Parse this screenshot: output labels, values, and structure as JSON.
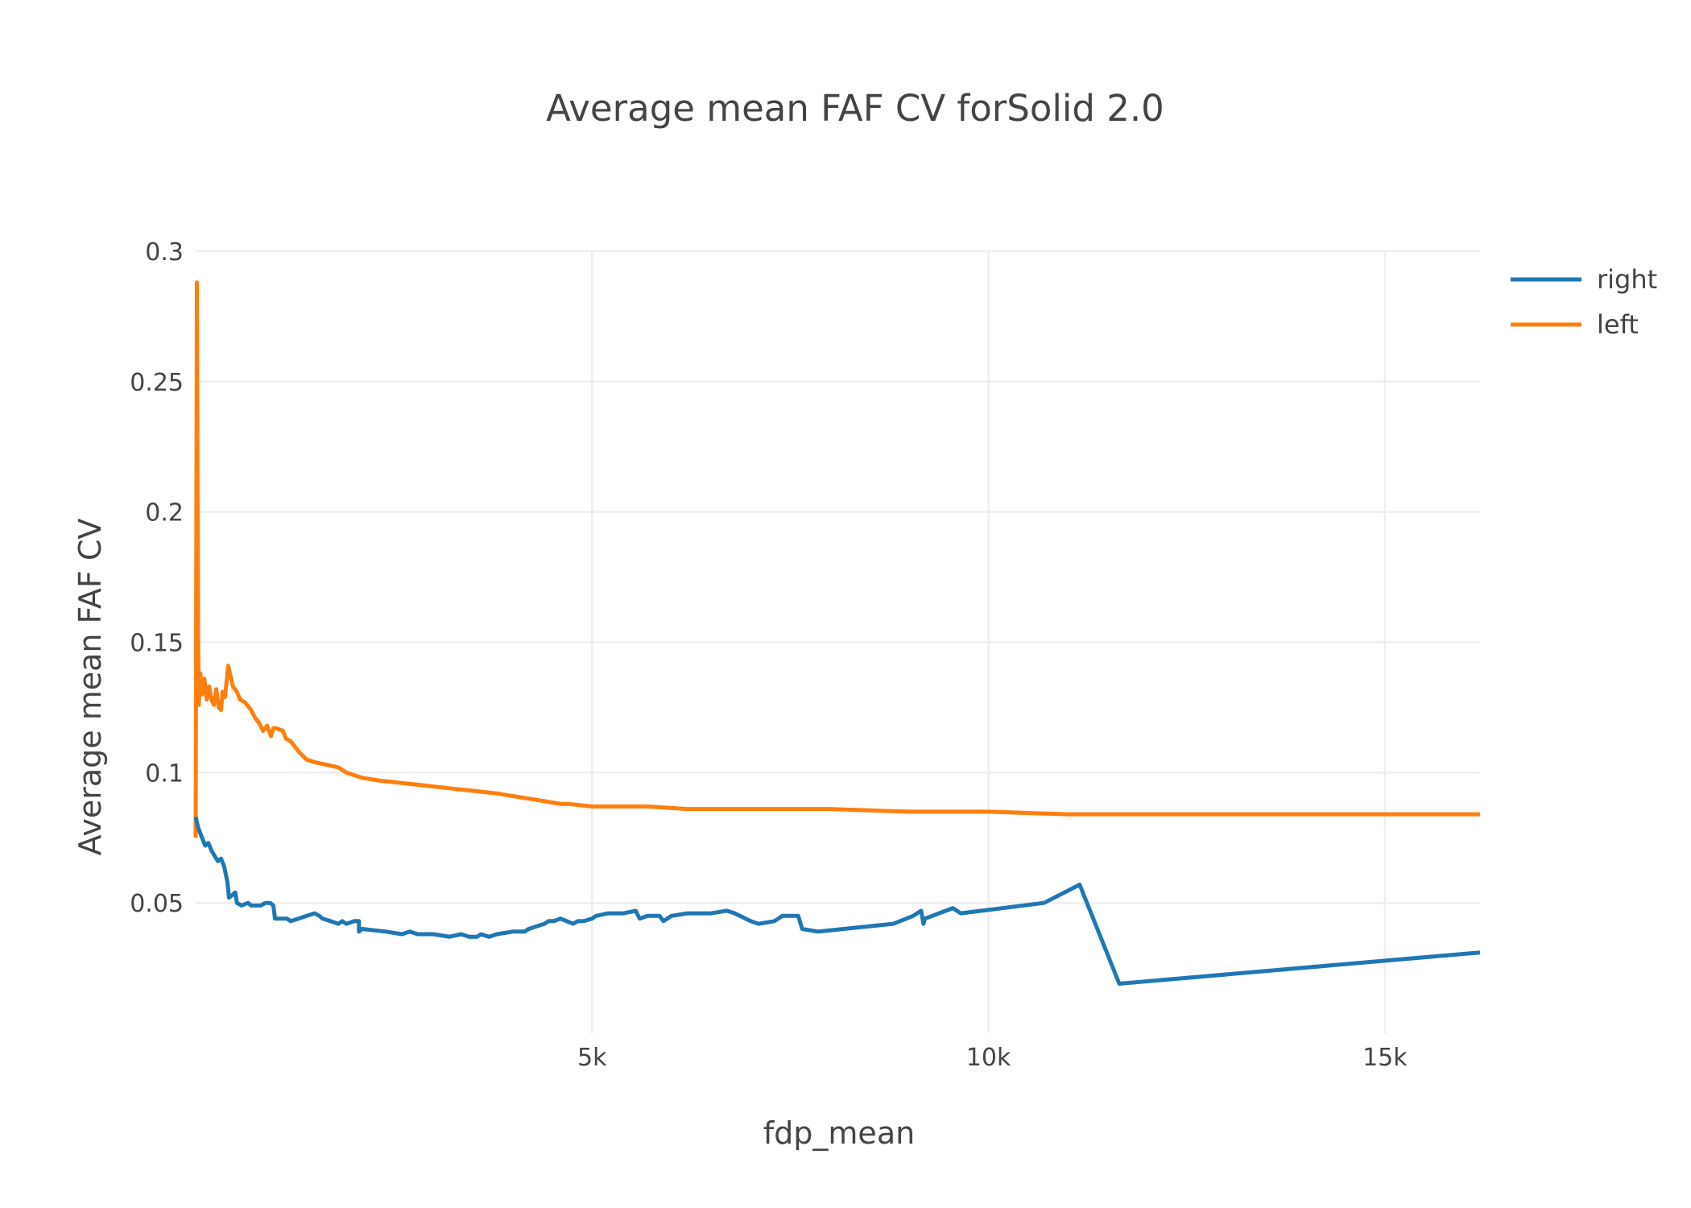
{
  "chart_data": {
    "type": "line",
    "title": "Average mean FAF CV forSolid 2.0",
    "xlabel": "fdp_mean",
    "ylabel": "Average mean FAF CV",
    "xlim": [
      0,
      16200
    ],
    "ylim": [
      0,
      0.3
    ],
    "xticks": [
      {
        "value": 5000,
        "label": "5k"
      },
      {
        "value": 10000,
        "label": "10k"
      },
      {
        "value": 15000,
        "label": "15k"
      }
    ],
    "yticks": [
      {
        "value": 0.05,
        "label": "0.05"
      },
      {
        "value": 0.1,
        "label": "0.1"
      },
      {
        "value": 0.15,
        "label": "0.15"
      },
      {
        "value": 0.2,
        "label": "0.2"
      },
      {
        "value": 0.25,
        "label": "0.25"
      },
      {
        "value": 0.3,
        "label": "0.3"
      }
    ],
    "grid": true,
    "legend_position": "top-right",
    "series": [
      {
        "name": "right",
        "color": "#1f77b4",
        "points": [
          [
            0,
            0.083
          ],
          [
            30,
            0.079
          ],
          [
            80,
            0.075
          ],
          [
            120,
            0.072
          ],
          [
            160,
            0.073
          ],
          [
            200,
            0.07
          ],
          [
            240,
            0.068
          ],
          [
            280,
            0.066
          ],
          [
            320,
            0.067
          ],
          [
            360,
            0.064
          ],
          [
            400,
            0.058
          ],
          [
            420,
            0.052
          ],
          [
            460,
            0.053
          ],
          [
            500,
            0.054
          ],
          [
            520,
            0.05
          ],
          [
            580,
            0.049
          ],
          [
            660,
            0.05
          ],
          [
            700,
            0.049
          ],
          [
            760,
            0.049
          ],
          [
            820,
            0.049
          ],
          [
            880,
            0.05
          ],
          [
            940,
            0.05
          ],
          [
            980,
            0.049
          ],
          [
            1000,
            0.044
          ],
          [
            1100,
            0.044
          ],
          [
            1150,
            0.044
          ],
          [
            1200,
            0.043
          ],
          [
            1300,
            0.044
          ],
          [
            1400,
            0.045
          ],
          [
            1500,
            0.046
          ],
          [
            1560,
            0.045
          ],
          [
            1600,
            0.044
          ],
          [
            1700,
            0.043
          ],
          [
            1800,
            0.042
          ],
          [
            1850,
            0.043
          ],
          [
            1900,
            0.042
          ],
          [
            2000,
            0.043
          ],
          [
            2060,
            0.043
          ],
          [
            2060,
            0.039
          ],
          [
            2100,
            0.04
          ],
          [
            2400,
            0.039
          ],
          [
            2600,
            0.038
          ],
          [
            2700,
            0.039
          ],
          [
            2800,
            0.038
          ],
          [
            2900,
            0.038
          ],
          [
            3000,
            0.038
          ],
          [
            3200,
            0.037
          ],
          [
            3350,
            0.038
          ],
          [
            3450,
            0.037
          ],
          [
            3550,
            0.037
          ],
          [
            3600,
            0.038
          ],
          [
            3700,
            0.037
          ],
          [
            3800,
            0.038
          ],
          [
            4000,
            0.039
          ],
          [
            4150,
            0.039
          ],
          [
            4200,
            0.04
          ],
          [
            4300,
            0.041
          ],
          [
            4400,
            0.042
          ],
          [
            4450,
            0.043
          ],
          [
            4520,
            0.043
          ],
          [
            4600,
            0.044
          ],
          [
            4680,
            0.043
          ],
          [
            4760,
            0.042
          ],
          [
            4820,
            0.043
          ],
          [
            4900,
            0.043
          ],
          [
            5000,
            0.044
          ],
          [
            5050,
            0.045
          ],
          [
            5200,
            0.046
          ],
          [
            5300,
            0.046
          ],
          [
            5400,
            0.046
          ],
          [
            5550,
            0.047
          ],
          [
            5600,
            0.044
          ],
          [
            5700,
            0.045
          ],
          [
            5850,
            0.045
          ],
          [
            5900,
            0.043
          ],
          [
            6000,
            0.045
          ],
          [
            6200,
            0.046
          ],
          [
            6500,
            0.046
          ],
          [
            6700,
            0.047
          ],
          [
            6800,
            0.046
          ],
          [
            7000,
            0.043
          ],
          [
            7100,
            0.042
          ],
          [
            7300,
            0.043
          ],
          [
            7400,
            0.045
          ],
          [
            7600,
            0.045
          ],
          [
            7650,
            0.04
          ],
          [
            7850,
            0.039
          ],
          [
            8800,
            0.042
          ],
          [
            9050,
            0.045
          ],
          [
            9150,
            0.047
          ],
          [
            9180,
            0.042
          ],
          [
            9200,
            0.044
          ],
          [
            9550,
            0.048
          ],
          [
            9650,
            0.046
          ],
          [
            10700,
            0.05
          ],
          [
            11150,
            0.057
          ],
          [
            11650,
            0.019
          ],
          [
            16200,
            0.031
          ]
        ]
      },
      {
        "name": "left",
        "color": "#ff7f0e",
        "points": [
          [
            0,
            0.075
          ],
          [
            15,
            0.288
          ],
          [
            30,
            0.15
          ],
          [
            40,
            0.126
          ],
          [
            60,
            0.138
          ],
          [
            80,
            0.13
          ],
          [
            110,
            0.136
          ],
          [
            140,
            0.128
          ],
          [
            170,
            0.133
          ],
          [
            200,
            0.128
          ],
          [
            230,
            0.126
          ],
          [
            260,
            0.132
          ],
          [
            290,
            0.125
          ],
          [
            320,
            0.124
          ],
          [
            340,
            0.131
          ],
          [
            370,
            0.129
          ],
          [
            390,
            0.135
          ],
          [
            410,
            0.141
          ],
          [
            440,
            0.137
          ],
          [
            470,
            0.133
          ],
          [
            520,
            0.131
          ],
          [
            560,
            0.128
          ],
          [
            620,
            0.127
          ],
          [
            700,
            0.124
          ],
          [
            750,
            0.121
          ],
          [
            800,
            0.119
          ],
          [
            850,
            0.116
          ],
          [
            900,
            0.118
          ],
          [
            950,
            0.114
          ],
          [
            980,
            0.117
          ],
          [
            1020,
            0.117
          ],
          [
            1100,
            0.116
          ],
          [
            1140,
            0.113
          ],
          [
            1200,
            0.112
          ],
          [
            1300,
            0.108
          ],
          [
            1400,
            0.105
          ],
          [
            1500,
            0.104
          ],
          [
            1650,
            0.103
          ],
          [
            1800,
            0.102
          ],
          [
            1900,
            0.1
          ],
          [
            2000,
            0.099
          ],
          [
            2100,
            0.098
          ],
          [
            2300,
            0.097
          ],
          [
            2600,
            0.096
          ],
          [
            2900,
            0.095
          ],
          [
            3200,
            0.094
          ],
          [
            3500,
            0.093
          ],
          [
            3800,
            0.092
          ],
          [
            4000,
            0.091
          ],
          [
            4200,
            0.09
          ],
          [
            4400,
            0.089
          ],
          [
            4600,
            0.088
          ],
          [
            4700,
            0.088
          ],
          [
            5000,
            0.087
          ],
          [
            5300,
            0.087
          ],
          [
            5700,
            0.087
          ],
          [
            6200,
            0.086
          ],
          [
            7000,
            0.086
          ],
          [
            8000,
            0.086
          ],
          [
            9000,
            0.085
          ],
          [
            9500,
            0.085
          ],
          [
            10000,
            0.085
          ],
          [
            11000,
            0.084
          ],
          [
            11500,
            0.084
          ],
          [
            12000,
            0.084
          ],
          [
            13000,
            0.084
          ],
          [
            14000,
            0.084
          ],
          [
            15000,
            0.084
          ],
          [
            16200,
            0.084
          ]
        ]
      }
    ]
  }
}
